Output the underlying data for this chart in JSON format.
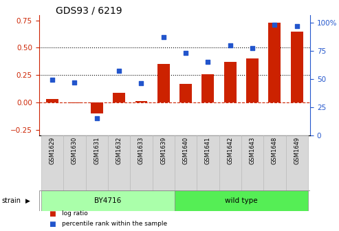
{
  "title": "GDS93 / 6219",
  "categories": [
    "GSM1629",
    "GSM1630",
    "GSM1631",
    "GSM1632",
    "GSM1633",
    "GSM1639",
    "GSM1640",
    "GSM1641",
    "GSM1642",
    "GSM1643",
    "GSM1648",
    "GSM1649"
  ],
  "log_ratio": [
    0.03,
    -0.01,
    -0.1,
    0.09,
    0.01,
    0.35,
    0.17,
    0.26,
    0.37,
    0.4,
    0.73,
    0.65
  ],
  "percentile_rank": [
    0.49,
    0.47,
    0.15,
    0.57,
    0.46,
    0.87,
    0.73,
    0.65,
    0.8,
    0.77,
    0.98,
    0.97
  ],
  "bar_color": "#cc2200",
  "dot_color": "#2255cc",
  "ylim_left": [
    -0.3,
    0.8
  ],
  "ylim_right": [
    0.0,
    1.067
  ],
  "yticks_left": [
    -0.25,
    0.0,
    0.25,
    0.5,
    0.75
  ],
  "yticks_right": [
    0.0,
    0.25,
    0.5,
    0.75,
    1.0
  ],
  "ytick_labels_right": [
    "0",
    "25",
    "50",
    "75",
    "100%"
  ],
  "hlines": [
    0.25,
    0.5
  ],
  "zero_line": 0.0,
  "group1_label": "BY4716",
  "group2_label": "wild type",
  "group1_indices": [
    0,
    1,
    2,
    3,
    4,
    5
  ],
  "group2_indices": [
    6,
    7,
    8,
    9,
    10,
    11
  ],
  "group1_color": "#aaffaa",
  "group2_color": "#55ee55",
  "strain_label": "strain",
  "legend_bar_label": "log ratio",
  "legend_dot_label": "percentile rank within the sample",
  "background_color": "#ffffff",
  "plot_bg_color": "#ffffff",
  "title_fontsize": 10,
  "tick_fontsize": 7.5,
  "label_fontsize": 7.5,
  "bar_width": 0.55
}
